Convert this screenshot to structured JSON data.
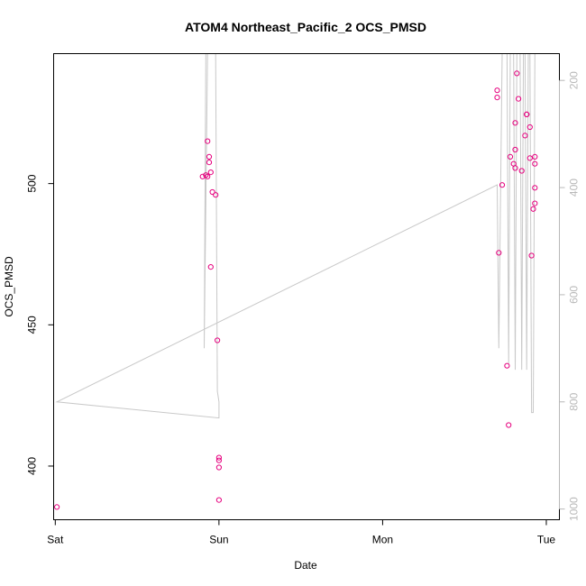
{
  "chart_data": {
    "type": "scatter",
    "title": "ATOM4 Northeast_Pacific_2 OCS_PMSD",
    "xlabel": "Date",
    "ylabel": "OCS_PMSD",
    "x_ticks": [
      "Sat",
      "Sun",
      "Mon",
      "Tue"
    ],
    "xlim": [
      -0.01,
      3.08
    ],
    "ylim": [
      381,
      546
    ],
    "y_ticks": [
      400,
      450,
      500
    ],
    "y2_ticks": [
      200,
      400,
      600,
      800,
      1000
    ],
    "y2lim": [
      1020,
      150
    ],
    "grid": false,
    "colors": {
      "points": "#e6007e",
      "line": "#c8c8c8",
      "right_axis": "#b8b8b8"
    },
    "series": [
      {
        "kind": "points",
        "points": [
          [
            0.01,
            385.5
          ],
          [
            0.9,
            502.5
          ],
          [
            0.92,
            503
          ],
          [
            0.93,
            515
          ],
          [
            0.93,
            502.5
          ],
          [
            0.94,
            509.5
          ],
          [
            0.94,
            507.5
          ],
          [
            0.95,
            504
          ],
          [
            0.95,
            470.5
          ],
          [
            0.96,
            497
          ],
          [
            0.98,
            496
          ],
          [
            0.99,
            444.5
          ],
          [
            1.0,
            403
          ],
          [
            1.0,
            402
          ],
          [
            1.0,
            399.5
          ],
          [
            1.0,
            388
          ],
          [
            2.7,
            533
          ],
          [
            2.7,
            530.5
          ],
          [
            2.71,
            475.5
          ],
          [
            2.73,
            499.5
          ],
          [
            2.76,
            435.5
          ],
          [
            2.77,
            414.5
          ],
          [
            2.78,
            509.5
          ],
          [
            2.8,
            507
          ],
          [
            2.81,
            505.5
          ],
          [
            2.81,
            521.5
          ],
          [
            2.81,
            512
          ],
          [
            2.82,
            539
          ],
          [
            2.83,
            530
          ],
          [
            2.85,
            504.5
          ],
          [
            2.87,
            517
          ],
          [
            2.88,
            524.5
          ],
          [
            2.88,
            524.5
          ],
          [
            2.9,
            520
          ],
          [
            2.9,
            509
          ],
          [
            2.91,
            474.5
          ],
          [
            2.92,
            491
          ],
          [
            2.93,
            493
          ],
          [
            2.93,
            507
          ],
          [
            2.93,
            509.5
          ],
          [
            2.93,
            498.5
          ]
        ]
      },
      {
        "kind": "line",
        "axis": "right",
        "points": [
          [
            0.92,
            150
          ],
          [
            0.91,
            700
          ],
          [
            0.93,
            150
          ],
          [
            0.98,
            150
          ],
          [
            0.99,
            780
          ],
          [
            1.0,
            800
          ],
          [
            1.0,
            830
          ],
          [
            0.01,
            800
          ],
          [
            2.7,
            395
          ],
          [
            2.71,
            700
          ],
          [
            2.73,
            150
          ],
          [
            2.76,
            150
          ],
          [
            2.77,
            730
          ],
          [
            2.78,
            150
          ],
          [
            2.8,
            150
          ],
          [
            2.81,
            740
          ],
          [
            2.82,
            150
          ],
          [
            2.84,
            150
          ],
          [
            2.85,
            740
          ],
          [
            2.86,
            150
          ],
          [
            2.87,
            150
          ],
          [
            2.88,
            740
          ],
          [
            2.89,
            150
          ],
          [
            2.9,
            150
          ],
          [
            2.91,
            820
          ],
          [
            2.92,
            820
          ],
          [
            2.93,
            150
          ],
          [
            2.96,
            150
          ]
        ]
      }
    ]
  }
}
